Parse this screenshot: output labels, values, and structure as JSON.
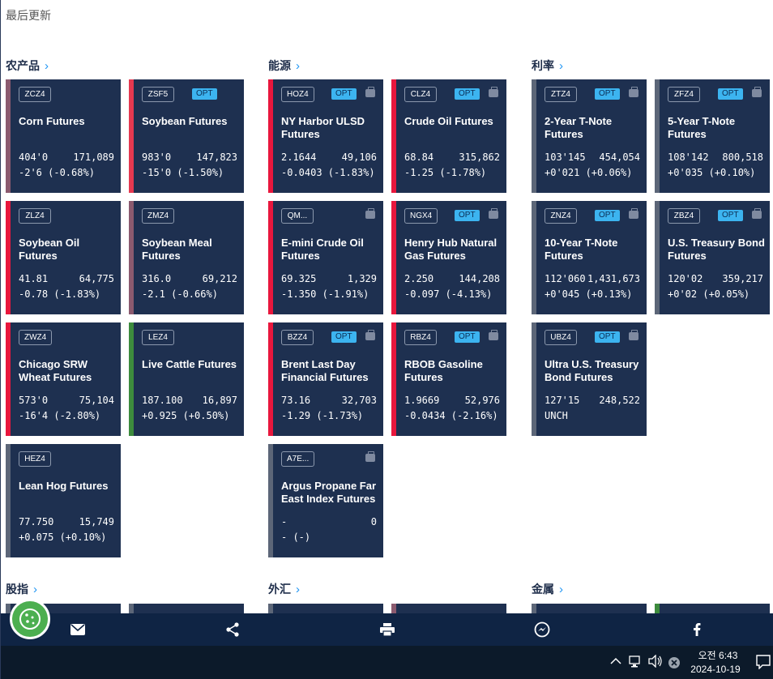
{
  "last_update_label": "最后更新",
  "sections": {
    "agri": "农产品",
    "energy": "能源",
    "rates": "利率",
    "equity": "股指",
    "fx": "外汇",
    "metals": "金属"
  },
  "tiles": [
    {
      "code": "ZCZ4",
      "opt": "",
      "name": "Corn Futures",
      "price": "404'0",
      "volume": "171,089",
      "change": "-2'6 (-0.68%)",
      "brief": false,
      "accent": "#8b5a6f"
    },
    {
      "code": "ZSF5",
      "opt": "OPT",
      "name": "Soybean Futures",
      "price": "983'0",
      "volume": "147,823",
      "change": "-15'0 (-1.50%)",
      "brief": false,
      "accent": "#e53950"
    },
    {
      "code": "HOZ4",
      "opt": "OPT",
      "name": "NY Harbor ULSD Futures",
      "price": "2.1644",
      "volume": "49,106",
      "change": "-0.0403 (-1.83%)",
      "brief": true,
      "accent": "#e8173d"
    },
    {
      "code": "CLZ4",
      "opt": "OPT",
      "name": "Crude Oil Futures",
      "price": "68.84",
      "volume": "315,862",
      "change": "-1.25 (-1.78%)",
      "brief": true,
      "accent": "#e8173d"
    },
    {
      "code": "ZTZ4",
      "opt": "OPT",
      "name": "2-Year T-Note Futures",
      "price": "103'145",
      "volume": "454,054",
      "change": "+0'021 (+0.06%)",
      "brief": true,
      "accent": "#5c6678"
    },
    {
      "code": "ZFZ4",
      "opt": "OPT",
      "name": "5-Year T-Note Futures",
      "price": "108'142",
      "volume": "800,518",
      "change": "+0'035 (+0.10%)",
      "brief": true,
      "accent": "#5c6678"
    },
    {
      "code": "ZLZ4",
      "opt": "",
      "name": "Soybean Oil Futures",
      "price": "41.81",
      "volume": "64,775",
      "change": "-0.78 (-1.83%)",
      "brief": false,
      "accent": "#e8173d"
    },
    {
      "code": "ZMZ4",
      "opt": "",
      "name": "Soybean Meal Futures",
      "price": "316.0",
      "volume": "69,212",
      "change": "-2.1 (-0.66%)",
      "brief": false,
      "accent": "#8b5a6f"
    },
    {
      "code": "QM...",
      "opt": "",
      "name": "E-mini Crude Oil Futures",
      "price": "69.325",
      "volume": "1,329",
      "change": "-1.350 (-1.91%)",
      "brief": true,
      "accent": "#e8173d"
    },
    {
      "code": "NGX4",
      "opt": "OPT",
      "name": "Henry Hub Natural Gas Futures",
      "price": "2.250",
      "volume": "144,208",
      "change": "-0.097 (-4.13%)",
      "brief": true,
      "accent": "#e8173d"
    },
    {
      "code": "ZNZ4",
      "opt": "OPT",
      "name": "10-Year T-Note Futures",
      "price": "112'060",
      "volume": "1,431,673",
      "change": "+0'045 (+0.13%)",
      "brief": true,
      "accent": "#5c6678"
    },
    {
      "code": "ZBZ4",
      "opt": "OPT",
      "name": "U.S. Treasury Bond Futures",
      "price": "120'02",
      "volume": "359,217",
      "change": "+0'02 (+0.05%)",
      "brief": true,
      "accent": "#5c6678"
    },
    {
      "code": "ZWZ4",
      "opt": "",
      "name": "Chicago SRW Wheat Futures",
      "price": "573'0",
      "volume": "75,104",
      "change": "-16'4 (-2.80%)",
      "brief": false,
      "accent": "#e8173d"
    },
    {
      "code": "LEZ4",
      "opt": "",
      "name": "Live Cattle Futures",
      "price": "187.100",
      "volume": "16,897",
      "change": "+0.925 (+0.50%)",
      "brief": false,
      "accent": "#3d8b3d"
    },
    {
      "code": "BZZ4",
      "opt": "OPT",
      "name": "Brent Last Day Financial Futures",
      "price": "73.16",
      "volume": "32,703",
      "change": "-1.29 (-1.73%)",
      "brief": true,
      "accent": "#e8173d"
    },
    {
      "code": "RBZ4",
      "opt": "OPT",
      "name": "RBOB Gasoline Futures",
      "price": "1.9669",
      "volume": "52,976",
      "change": "-0.0434 (-2.16%)",
      "brief": true,
      "accent": "#e8173d"
    },
    {
      "code": "UBZ4",
      "opt": "OPT",
      "name": "Ultra U.S. Treasury Bond Futures",
      "price": "127'15",
      "volume": "248,522",
      "change": "UNCH",
      "brief": true,
      "accent": "#5c6678"
    },
    {
      "code": "HEZ4",
      "opt": "",
      "name": "Lean Hog Futures",
      "price": "77.750",
      "volume": "15,749",
      "change": "+0.075 (+0.10%)",
      "brief": false,
      "accent": "#5c6678"
    },
    {
      "code": "A7E...",
      "opt": "",
      "name": "Argus Propane Far East Index Futures",
      "price": "-",
      "volume": "0",
      "change": "- (-)",
      "brief": true,
      "accent": "#5c6678"
    }
  ],
  "share_bar": {
    "items": [
      "email-icon",
      "share-icon",
      "print-icon",
      "messenger-icon",
      "facebook-icon"
    ]
  },
  "taskbar": {
    "time": "오전 6:43",
    "date": "2024-10-19"
  },
  "colors": {
    "tile_bg": "#1e3050",
    "opt_badge": "#3cb4f0",
    "share_bar_bg": "#0f2444",
    "cookie": "#4caf50"
  }
}
